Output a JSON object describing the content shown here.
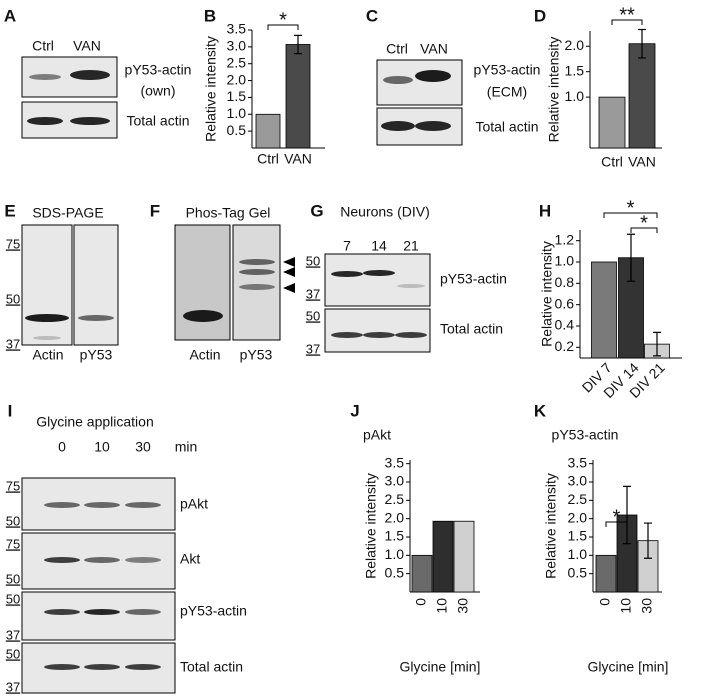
{
  "figure": {
    "A": {
      "label": "A",
      "lanes": [
        "Ctrl",
        "VAN"
      ],
      "rows": [
        [
          "pY53-actin",
          "(own)"
        ],
        [
          "Total actin"
        ]
      ]
    },
    "C": {
      "label": "C",
      "lanes": [
        "Ctrl",
        "VAN"
      ],
      "rows": [
        [
          "pY53-actin",
          "(ECM)"
        ],
        [
          "Total actin"
        ]
      ]
    },
    "E": {
      "label": "E",
      "title": "SDS-PAGE",
      "markers": [
        "75",
        "50",
        "37"
      ],
      "lanes": [
        "Actin",
        "pY53"
      ]
    },
    "F": {
      "label": "F",
      "title": "Phos-Tag Gel",
      "lanes": [
        "Actin",
        "pY53"
      ]
    },
    "G": {
      "label": "G",
      "title": "Neurons (DIV)",
      "lanes": [
        "7",
        "14",
        "21"
      ],
      "markers": [
        "50",
        "37",
        "50",
        "37"
      ],
      "rows": [
        "pY53-actin",
        "Total actin"
      ]
    },
    "I": {
      "label": "I",
      "title": "Glycine application",
      "lanes": [
        "0",
        "10",
        "30"
      ],
      "unit": "min",
      "markers": [
        "75",
        "50",
        "75",
        "50",
        "50",
        "37",
        "50",
        "37"
      ],
      "rows": [
        "pAkt",
        "Akt",
        "pY53-actin",
        "Total actin"
      ]
    }
  },
  "chart_data": [
    {
      "type": "bar",
      "panel": "B",
      "ylabel": "Relative intensity",
      "categories": [
        "Ctrl",
        "VAN"
      ],
      "values": [
        1.0,
        3.07
      ],
      "errors": [
        null,
        0.27
      ],
      "colors": [
        "#9a9a9a",
        "#4a4a4a"
      ],
      "ylim": [
        0,
        3.5
      ],
      "yticks": [
        0.5,
        {
          "value": 1,
          "label": "1.0"
        },
        1.5,
        {
          "value": 2,
          "label": "2.0"
        },
        2.5,
        {
          "value": 3,
          "label": "3.0"
        },
        3.5
      ],
      "annotations": [
        {
          "text": "*",
          "between": [
            "Ctrl",
            "VAN"
          ]
        }
      ]
    },
    {
      "type": "bar",
      "panel": "D",
      "ylabel": "Relative intensity",
      "categories": [
        "Ctrl",
        "VAN"
      ],
      "values": [
        1.0,
        2.05
      ],
      "errors": [
        null,
        0.28
      ],
      "colors": [
        "#9a9a9a",
        "#4a4a4a"
      ],
      "ylim": [
        0,
        2.3
      ],
      "yticks": [
        {
          "value": 1,
          "label": "1.0"
        },
        1.5,
        {
          "value": 2,
          "label": "2.0"
        }
      ],
      "annotations": [
        {
          "text": "**",
          "between": [
            "Ctrl",
            "VAN"
          ]
        }
      ]
    },
    {
      "type": "bar",
      "panel": "H",
      "ylabel": "Relative intensity",
      "categories": [
        "DIV 7",
        "DIV 14",
        "DIV 21"
      ],
      "values": [
        1.0,
        1.04,
        0.23
      ],
      "errors": [
        null,
        0.22,
        0.11
      ],
      "colors": [
        "#7a7a7a",
        "#333333",
        "#cfcfcf"
      ],
      "ylim": [
        0.1,
        1.3
      ],
      "yticks": [
        0.2,
        0.4,
        0.6,
        0.8,
        {
          "value": 1,
          "label": "1.0"
        },
        1.2
      ],
      "annotations": [
        {
          "text": "*",
          "between": [
            "DIV 7",
            "DIV 21"
          ]
        },
        {
          "text": "*",
          "between": [
            "DIV 14",
            "DIV 21"
          ]
        }
      ]
    },
    {
      "type": "bar",
      "panel": "J",
      "title": "pAkt",
      "ylabel": "Relative intensity",
      "xlabel": "Glycine [min]",
      "categories": [
        "0",
        "10",
        "30"
      ],
      "values": [
        1.0,
        1.93,
        1.93
      ],
      "colors": [
        "#6a6a6a",
        "#2e2e2e",
        "#d0d0d0"
      ],
      "ylim": [
        0,
        3.6
      ],
      "yticks": [
        0.5,
        {
          "value": 1,
          "label": "1.0"
        },
        1.5,
        {
          "value": 2,
          "label": "2.0"
        },
        2.5,
        {
          "value": 3,
          "label": "3.0"
        },
        3.5
      ]
    },
    {
      "type": "bar",
      "panel": "K",
      "title": "pY53-actin",
      "ylabel": "Relative intensity",
      "xlabel": "Glycine [min]",
      "categories": [
        "0",
        "10",
        "30"
      ],
      "values": [
        1.0,
        2.1,
        1.4
      ],
      "errors": [
        null,
        0.78,
        0.48
      ],
      "colors": [
        "#6a6a6a",
        "#2e2e2e",
        "#d0d0d0"
      ],
      "ylim": [
        0,
        3.6
      ],
      "yticks": [
        0.5,
        {
          "value": 1,
          "label": "1.0"
        },
        1.5,
        {
          "value": 2,
          "label": "2.0"
        },
        2.5,
        {
          "value": 3,
          "label": "3.0"
        },
        3.5
      ],
      "annotations": [
        {
          "text": "*",
          "between": [
            "0",
            "10"
          ]
        }
      ]
    }
  ]
}
